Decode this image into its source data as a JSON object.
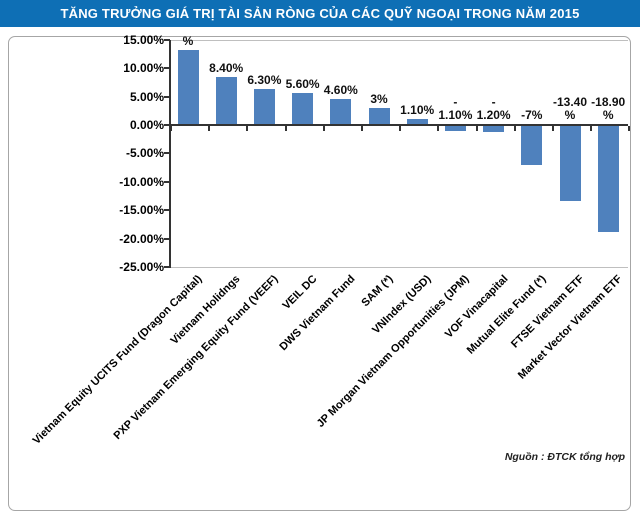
{
  "title": "TĂNG TRƯỞNG GIÁ TRỊ TÀI SẢN RÒNG CỦA CÁC QUỸ NGOẠI TRONG NĂM 2015",
  "source_note": "Nguồn : ĐTCK tổng hợp",
  "colors": {
    "title_bg": "#0e6fb5",
    "title_text": "#ffffff",
    "bar_fill": "#4f81bd",
    "axis_line": "#333333",
    "plot_border": "#bfbfbf",
    "box_border": "#a6a6a6"
  },
  "chart_data": {
    "type": "bar",
    "title": "TĂNG TRƯỞNG GIÁ TRỊ TÀI SẢN RÒNG CỦA CÁC QUỸ NGOẠI TRONG NĂM 2015",
    "categories": [
      "Vietnam Equity UCITS Fund (Dragon Capital)",
      "Vietnam Holidngs",
      "PXP Vietnam Emerging Equity Fund (VEEF)",
      "VEIL DC",
      "DWS Vietnam Fund",
      "SAM (*)",
      "VNIndex (USD)",
      "JP Morgan Vietnam Opportunities (JPM)",
      "VOF Vinacapital",
      "Mutual Elite Fund (*)",
      "FTSE Vietnam ETF",
      "Market Vector Vietnam ETF"
    ],
    "values": [
      13.3,
      8.4,
      6.3,
      5.6,
      4.6,
      3.0,
      1.1,
      -1.1,
      -1.2,
      -7.0,
      -13.4,
      -18.9
    ],
    "bar_labels": [
      [
        "%"
      ],
      [
        "8.40%"
      ],
      [
        "6.30%"
      ],
      [
        "5.60%"
      ],
      [
        "4.60%"
      ],
      [
        "3%"
      ],
      [
        "1.10%"
      ],
      [
        "-",
        "1.10%"
      ],
      [
        "-",
        "1.20%"
      ],
      [
        "-7%"
      ],
      [
        "-13.40",
        "%"
      ],
      [
        "-18.90",
        "%"
      ]
    ],
    "y_ticks": [
      "15.00%",
      "10.00%",
      "5.00%",
      "0.00%",
      "-5.00%",
      "-10.00%",
      "-15.00%",
      "-20.00%",
      "-25.00%"
    ],
    "y_tick_values": [
      15,
      10,
      5,
      0,
      -5,
      -10,
      -15,
      -20,
      -25
    ],
    "ylim": [
      -25,
      15
    ],
    "xlabel": "",
    "ylabel": "",
    "grid": false,
    "legend": null
  }
}
